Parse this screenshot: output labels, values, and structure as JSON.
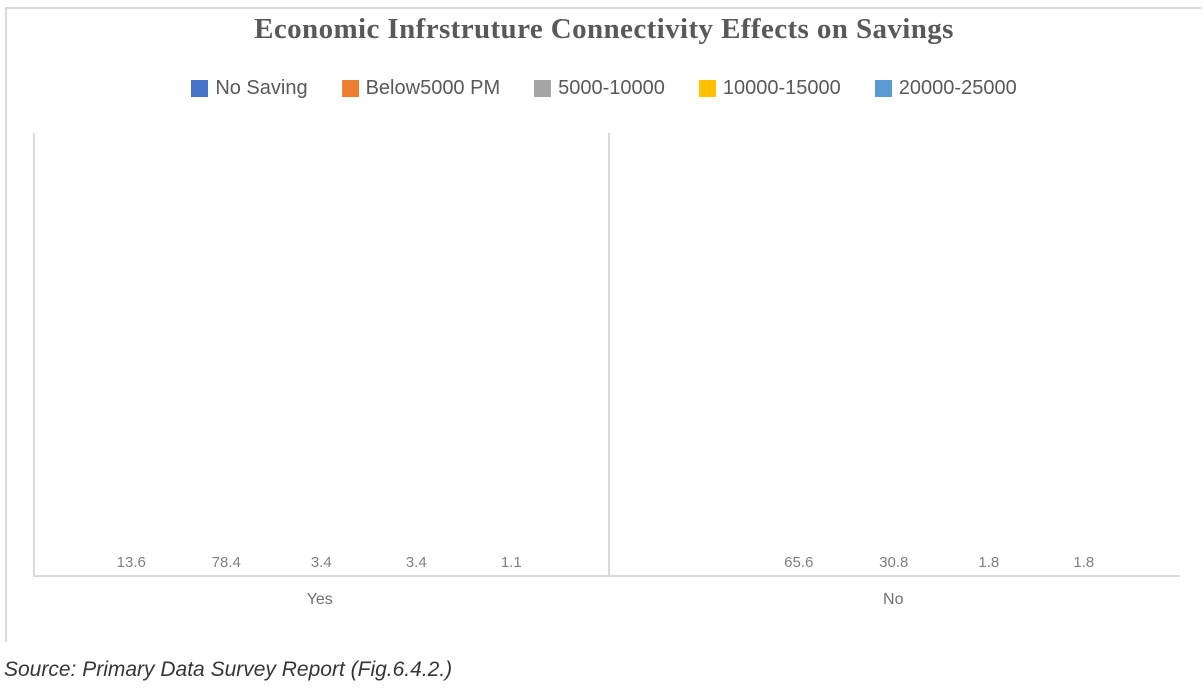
{
  "chart": {
    "title": "Economic Infrstruture Connectivity Effects on Savings",
    "source_note": "Source: Primary Data Survey Report (Fig.6.4.2.)"
  },
  "chart_data": {
    "type": "bar",
    "title": "Economic Infrstruture Connectivity Effects on Savings",
    "categories": [
      "Yes",
      "No"
    ],
    "series": [
      {
        "name": "No Saving",
        "color": "#4472C4",
        "values": [
          13.6,
          0
        ]
      },
      {
        "name": "Below5000 PM",
        "color": "#ED7D31",
        "values": [
          78.4,
          65.6
        ]
      },
      {
        "name": "5000-10000",
        "color": "#A5A5A5",
        "values": [
          3.4,
          30.8
        ]
      },
      {
        "name": "10000-15000",
        "color": "#FFC000",
        "values": [
          3.4,
          1.8
        ]
      },
      {
        "name": "20000-25000",
        "color": "#5B9BD5",
        "values": [
          1.1,
          1.8
        ]
      }
    ],
    "ylim": [
      0,
      90
    ],
    "xlabel": "",
    "ylabel": "",
    "grid": false,
    "data_labels": true,
    "legend_position": "top",
    "source_note": "Source: Primary Data Survey Report (Fig.6.4.2.)"
  },
  "colors": {
    "frame_border": "#D9D9D9",
    "axis_line": "#D9D9D9",
    "title_text": "#595959",
    "legend_text": "#595959",
    "data_label_text": "#808080",
    "category_label_text": "#707070",
    "source_text": "#363636"
  }
}
